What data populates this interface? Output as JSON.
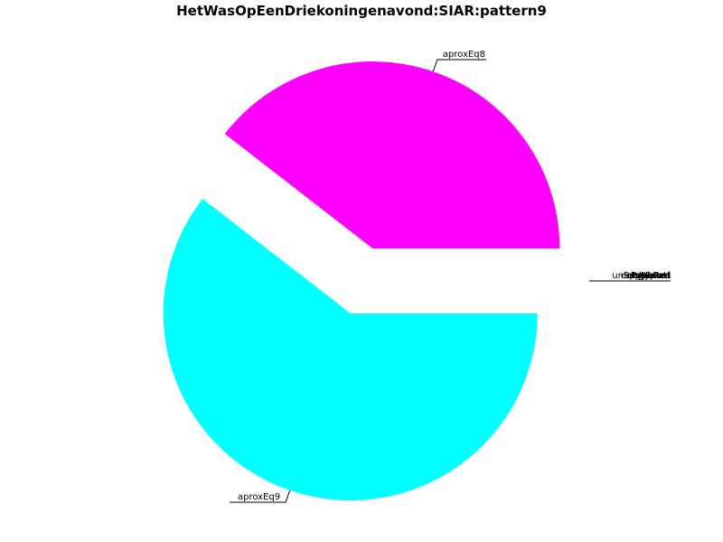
{
  "chart_data": {
    "type": "pie",
    "title": "HetWasOpEenDriekoningenavond:SIAR:pattern9",
    "slices": [
      {
        "label": "aproxEq8",
        "value": 39.5,
        "color": "#ff00ff",
        "exploded": true
      },
      {
        "label": "aproxEq9",
        "value": 60.5,
        "color": "#00ffff",
        "exploded": true
      }
    ],
    "overlapping_labels": [
      "lengthPatt",
      "bypass",
      "eqIsAlmost",
      "PatScore",
      "dtypeRed",
      "unSupported"
    ]
  }
}
